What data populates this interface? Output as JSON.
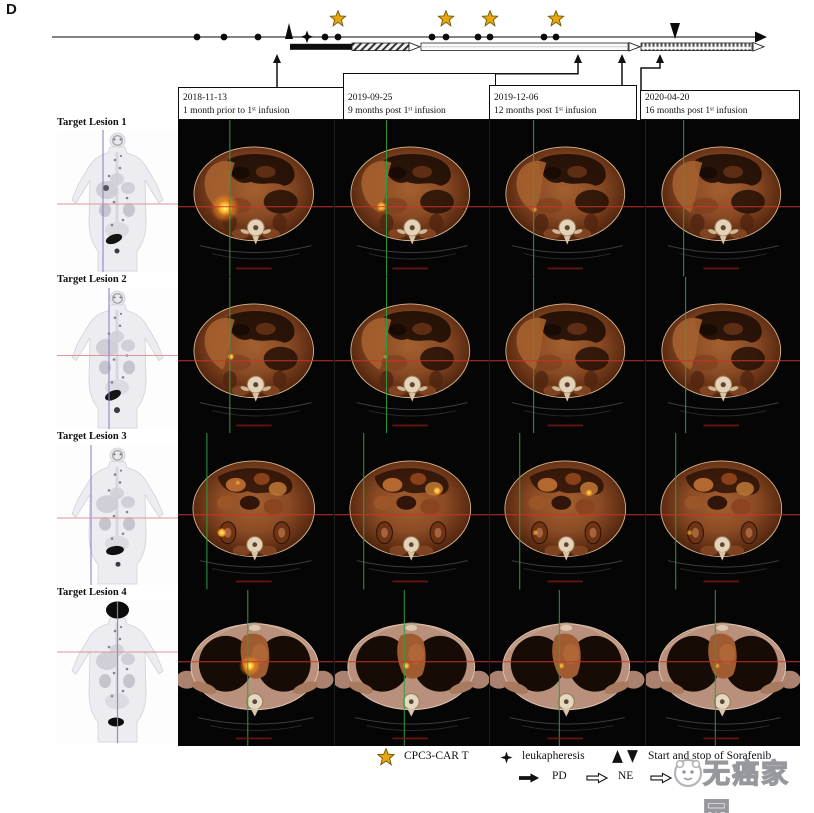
{
  "panel_label": "D",
  "timeline": {
    "callouts": [
      {
        "date": "2018-11-13",
        "caption": "1 month prior to 1ˢᵗ infusion"
      },
      {
        "date": "2019-09-25",
        "caption": "9 months post 1ˢᵗ infusion"
      },
      {
        "date": "2019-12-06",
        "caption": "12 months post 1ˢᵗ infusion"
      },
      {
        "date": "2020-04-20",
        "caption": "16 months post 1ˢᵗ infusion"
      }
    ]
  },
  "lesions": [
    {
      "label": "Target Lesion 1"
    },
    {
      "label": "Target Lesion 2"
    },
    {
      "label": "Target Lesion 3"
    },
    {
      "label": "Target Lesion 4"
    }
  ],
  "legend": {
    "car_t": "CPC3-CAR T",
    "leukapheresis": "leukapheresis",
    "sorafenib": "Start and stop of Sorafenib",
    "pd": "PD",
    "ne": "NE"
  },
  "watermark": {
    "text": "无癌家园"
  },
  "colors": {
    "star_gold": "#e7a60e",
    "crosshair_green": "#2f9e43",
    "crosshair_red": "#c9352b",
    "mip_line_blue": "#8886c8",
    "mip_line_red": "#d89895",
    "panel_background": "#050505"
  }
}
